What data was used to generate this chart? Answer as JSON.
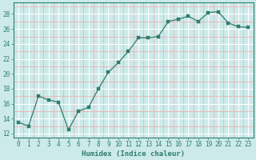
{
  "x": [
    0,
    1,
    2,
    3,
    4,
    5,
    6,
    7,
    8,
    9,
    10,
    11,
    12,
    13,
    14,
    15,
    16,
    17,
    18,
    19,
    20,
    21,
    22,
    23
  ],
  "y": [
    13.5,
    13.0,
    17.0,
    16.5,
    16.2,
    12.5,
    15.0,
    15.5,
    18.0,
    20.2,
    21.5,
    23.0,
    24.8,
    24.8,
    25.0,
    27.0,
    27.3,
    27.7,
    27.0,
    28.2,
    28.3,
    26.8,
    26.3,
    26.2
  ],
  "xlabel": "Humidex (Indice chaleur)",
  "xlim": [
    -0.5,
    23.5
  ],
  "ylim": [
    11.5,
    29.5
  ],
  "yticks": [
    12,
    14,
    16,
    18,
    20,
    22,
    24,
    26,
    28
  ],
  "xticks": [
    0,
    1,
    2,
    3,
    4,
    5,
    6,
    7,
    8,
    9,
    10,
    11,
    12,
    13,
    14,
    15,
    16,
    17,
    18,
    19,
    20,
    21,
    22,
    23
  ],
  "line_color": "#2e7d6e",
  "marker_size": 2.5,
  "bg_color": "#cceaea",
  "grid_major_color": "#ffffff",
  "grid_minor_color": "#f0aaaa",
  "tick_fontsize": 5.5,
  "xlabel_fontsize": 6.5,
  "spine_color": "#2e7d6e"
}
